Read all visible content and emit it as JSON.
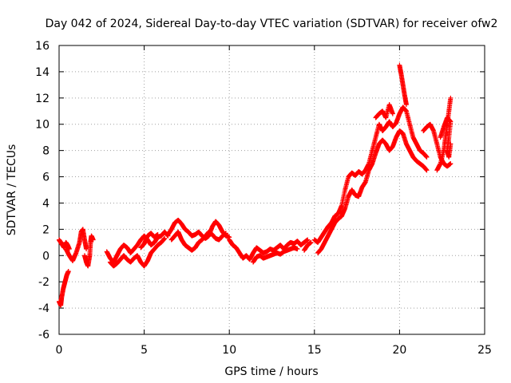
{
  "chart_data": {
    "type": "scatter",
    "title": "Day 042 of 2024, Sidereal Day-to-day VTEC variation (SDTVAR) for receiver ofw2",
    "xlabel": "GPS time / hours",
    "ylabel": "SDTVAR / TECUs",
    "xlim": [
      0,
      25
    ],
    "ylim": [
      -6,
      16
    ],
    "xticks": [
      0,
      5,
      10,
      15,
      20,
      25
    ],
    "yticks": [
      -6,
      -4,
      -2,
      0,
      2,
      4,
      6,
      8,
      10,
      12,
      14,
      16
    ],
    "grid": true,
    "marker": "+",
    "series_color": "#ff0000",
    "series": [
      {
        "name": "SDTVAR",
        "tracks": [
          [
            [
              0.0,
              1.2
            ],
            [
              0.1,
              1.0
            ],
            [
              0.2,
              0.8
            ],
            [
              0.3,
              0.6
            ],
            [
              0.4,
              1.0
            ],
            [
              0.5,
              0.8
            ],
            [
              0.6,
              0.5
            ]
          ],
          [
            [
              0.0,
              -3.5
            ],
            [
              0.1,
              -3.8
            ],
            [
              0.15,
              -3.2
            ],
            [
              0.25,
              -2.5
            ],
            [
              0.35,
              -2.0
            ],
            [
              0.45,
              -1.5
            ],
            [
              0.55,
              -1.2
            ]
          ],
          [
            [
              0.4,
              0.5
            ],
            [
              0.6,
              0.0
            ],
            [
              0.8,
              -0.4
            ],
            [
              1.0,
              0.2
            ],
            [
              1.2,
              1.0
            ],
            [
              1.3,
              1.8
            ],
            [
              1.4,
              2.0
            ],
            [
              1.5,
              1.2
            ],
            [
              1.6,
              0.5
            ]
          ],
          [
            [
              1.5,
              0.0
            ],
            [
              1.6,
              -0.5
            ],
            [
              1.7,
              -0.8
            ],
            [
              1.8,
              0.0
            ],
            [
              1.85,
              1.0
            ],
            [
              1.9,
              1.5
            ],
            [
              2.0,
              1.2
            ]
          ],
          [
            [
              2.8,
              0.3
            ],
            [
              3.0,
              -0.2
            ],
            [
              3.2,
              -0.5
            ],
            [
              3.4,
              0.0
            ],
            [
              3.6,
              0.5
            ],
            [
              3.8,
              0.8
            ],
            [
              4.0,
              0.6
            ],
            [
              4.2,
              0.2
            ],
            [
              4.4,
              0.5
            ],
            [
              4.6,
              0.8
            ],
            [
              4.8,
              1.2
            ],
            [
              5.0,
              1.5
            ],
            [
              5.2,
              1.2
            ],
            [
              5.4,
              0.8
            ],
            [
              5.6,
              1.0
            ],
            [
              5.8,
              1.4
            ],
            [
              6.0,
              1.5
            ],
            [
              6.2,
              1.8
            ],
            [
              6.4,
              1.5
            ]
          ],
          [
            [
              3.0,
              -0.5
            ],
            [
              3.2,
              -0.8
            ],
            [
              3.4,
              -0.6
            ],
            [
              3.6,
              -0.3
            ],
            [
              3.8,
              0.0
            ],
            [
              4.0,
              -0.3
            ],
            [
              4.2,
              -0.5
            ],
            [
              4.4,
              -0.2
            ],
            [
              4.6,
              0.0
            ],
            [
              4.8,
              -0.5
            ],
            [
              5.0,
              -0.8
            ],
            [
              5.2,
              -0.4
            ],
            [
              5.4,
              0.2
            ],
            [
              5.6,
              0.5
            ],
            [
              5.8,
              0.8
            ],
            [
              6.0,
              1.0
            ],
            [
              6.2,
              1.3
            ]
          ],
          [
            [
              4.8,
              0.6
            ],
            [
              5.0,
              0.9
            ],
            [
              5.2,
              1.5
            ],
            [
              5.4,
              1.7
            ],
            [
              5.6,
              1.4
            ],
            [
              5.8,
              1.6
            ]
          ],
          [
            [
              6.4,
              1.6
            ],
            [
              6.6,
              2.0
            ],
            [
              6.8,
              2.5
            ],
            [
              7.0,
              2.7
            ],
            [
              7.2,
              2.4
            ],
            [
              7.4,
              2.0
            ],
            [
              7.6,
              1.8
            ],
            [
              7.8,
              1.5
            ],
            [
              8.0,
              1.6
            ],
            [
              8.2,
              1.8
            ],
            [
              8.4,
              1.5
            ],
            [
              8.6,
              1.3
            ],
            [
              8.8,
              1.5
            ],
            [
              9.0,
              2.2
            ],
            [
              9.2,
              2.6
            ],
            [
              9.4,
              2.3
            ],
            [
              9.6,
              1.8
            ],
            [
              9.8,
              1.5
            ],
            [
              10.0,
              1.4
            ]
          ],
          [
            [
              6.6,
              1.2
            ],
            [
              6.8,
              1.5
            ],
            [
              7.0,
              1.8
            ],
            [
              7.2,
              1.2
            ],
            [
              7.4,
              0.8
            ],
            [
              7.6,
              0.6
            ],
            [
              7.8,
              0.4
            ],
            [
              8.0,
              0.6
            ],
            [
              8.2,
              1.0
            ],
            [
              8.4,
              1.2
            ],
            [
              8.6,
              1.5
            ],
            [
              8.8,
              1.8
            ],
            [
              9.0,
              1.6
            ],
            [
              9.2,
              1.3
            ],
            [
              9.4,
              1.2
            ],
            [
              9.6,
              1.5
            ],
            [
              9.8,
              1.7
            ]
          ],
          [
            [
              10.0,
              1.2
            ],
            [
              10.2,
              0.8
            ],
            [
              10.4,
              0.6
            ],
            [
              10.6,
              0.2
            ],
            [
              10.8,
              -0.2
            ],
            [
              11.0,
              0.0
            ],
            [
              11.2,
              -0.3
            ],
            [
              11.4,
              0.2
            ],
            [
              11.6,
              0.6
            ],
            [
              11.8,
              0.4
            ],
            [
              12.0,
              0.2
            ],
            [
              12.2,
              0.3
            ],
            [
              12.4,
              0.5
            ],
            [
              12.6,
              0.4
            ],
            [
              12.8,
              0.6
            ],
            [
              13.0,
              0.8
            ],
            [
              13.2,
              0.5
            ],
            [
              13.4,
              0.8
            ],
            [
              13.6,
              1.0
            ],
            [
              13.8,
              0.9
            ],
            [
              14.0,
              1.1
            ],
            [
              14.2,
              0.8
            ],
            [
              14.4,
              1.0
            ],
            [
              14.6,
              1.2
            ]
          ],
          [
            [
              11.4,
              -0.5
            ],
            [
              11.6,
              -0.1
            ],
            [
              11.8,
              0.0
            ],
            [
              12.0,
              -0.2
            ],
            [
              12.2,
              -0.1
            ],
            [
              12.4,
              0.0
            ],
            [
              12.6,
              0.1
            ],
            [
              12.8,
              0.2
            ],
            [
              13.0,
              0.1
            ],
            [
              13.2,
              0.3
            ],
            [
              13.4,
              0.4
            ],
            [
              13.6,
              0.5
            ],
            [
              13.8,
              0.6
            ],
            [
              14.0,
              0.5
            ]
          ],
          [
            [
              14.4,
              0.4
            ],
            [
              14.6,
              0.8
            ],
            [
              14.8,
              1.0
            ]
          ],
          [
            [
              15.0,
              1.2
            ],
            [
              15.2,
              1.0
            ],
            [
              15.4,
              1.4
            ],
            [
              15.6,
              1.8
            ],
            [
              15.8,
              2.2
            ],
            [
              16.0,
              2.5
            ],
            [
              16.2,
              3.0
            ],
            [
              16.4,
              3.2
            ],
            [
              16.6,
              3.8
            ],
            [
              16.8,
              5.0
            ],
            [
              17.0,
              6.0
            ],
            [
              17.2,
              6.3
            ],
            [
              17.4,
              6.1
            ],
            [
              17.6,
              6.4
            ],
            [
              17.8,
              6.2
            ],
            [
              18.0,
              6.5
            ],
            [
              18.2,
              7.0
            ],
            [
              18.4,
              8.0
            ],
            [
              18.6,
              9.0
            ],
            [
              18.8,
              10.0
            ],
            [
              19.0,
              9.5
            ],
            [
              19.2,
              9.8
            ],
            [
              19.4,
              10.2
            ],
            [
              19.6,
              9.8
            ],
            [
              19.8,
              10.1
            ],
            [
              20.0,
              10.8
            ],
            [
              20.2,
              11.3
            ],
            [
              20.4,
              11.0
            ],
            [
              20.6,
              10.0
            ],
            [
              20.8,
              9.0
            ],
            [
              21.0,
              8.5
            ],
            [
              21.2,
              8.0
            ],
            [
              21.4,
              7.8
            ],
            [
              21.6,
              7.5
            ]
          ],
          [
            [
              15.2,
              0.2
            ],
            [
              15.4,
              0.5
            ],
            [
              15.6,
              1.0
            ],
            [
              15.8,
              1.5
            ],
            [
              16.0,
              2.0
            ],
            [
              16.2,
              2.5
            ],
            [
              16.4,
              2.8
            ],
            [
              16.6,
              3.0
            ],
            [
              16.8,
              3.6
            ],
            [
              17.0,
              4.5
            ],
            [
              17.2,
              5.0
            ],
            [
              17.4,
              4.6
            ],
            [
              17.6,
              4.5
            ],
            [
              17.8,
              5.2
            ],
            [
              18.0,
              5.6
            ],
            [
              18.2,
              6.5
            ],
            [
              18.4,
              7.0
            ],
            [
              18.6,
              7.8
            ],
            [
              18.8,
              8.5
            ],
            [
              19.0,
              8.8
            ],
            [
              19.2,
              8.5
            ],
            [
              19.4,
              8.0
            ],
            [
              19.6,
              8.3
            ],
            [
              19.8,
              9.0
            ],
            [
              20.0,
              9.5
            ],
            [
              20.2,
              9.3
            ],
            [
              20.4,
              8.5
            ],
            [
              20.6,
              8.0
            ],
            [
              20.8,
              7.5
            ],
            [
              21.0,
              7.2
            ],
            [
              21.2,
              7.0
            ],
            [
              21.4,
              6.8
            ],
            [
              21.6,
              6.5
            ]
          ],
          [
            [
              18.6,
              10.5
            ],
            [
              18.8,
              10.8
            ],
            [
              19.0,
              11.0
            ],
            [
              19.2,
              10.5
            ],
            [
              19.4,
              11.5
            ],
            [
              19.6,
              10.8
            ]
          ],
          [
            [
              20.0,
              14.5
            ],
            [
              20.1,
              13.8
            ],
            [
              20.2,
              13.0
            ],
            [
              20.3,
              12.2
            ],
            [
              20.4,
              11.5
            ]
          ],
          [
            [
              21.4,
              9.5
            ],
            [
              21.6,
              9.8
            ],
            [
              21.8,
              10.0
            ],
            [
              22.0,
              9.5
            ],
            [
              22.2,
              8.5
            ],
            [
              22.4,
              7.5
            ],
            [
              22.6,
              7.0
            ],
            [
              22.8,
              6.8
            ],
            [
              23.0,
              7.0
            ]
          ],
          [
            [
              22.2,
              6.5
            ],
            [
              22.4,
              7.0
            ],
            [
              22.6,
              8.0
            ],
            [
              22.7,
              9.0
            ],
            [
              22.8,
              10.0
            ],
            [
              22.9,
              11.0
            ],
            [
              23.0,
              12.0
            ]
          ],
          [
            [
              22.4,
              9.0
            ],
            [
              22.6,
              9.8
            ],
            [
              22.8,
              10.5
            ],
            [
              23.0,
              10.2
            ],
            [
              22.9,
              9.0
            ],
            [
              22.8,
              8.0
            ],
            [
              22.9,
              7.5
            ],
            [
              23.0,
              8.5
            ]
          ]
        ]
      }
    ]
  }
}
